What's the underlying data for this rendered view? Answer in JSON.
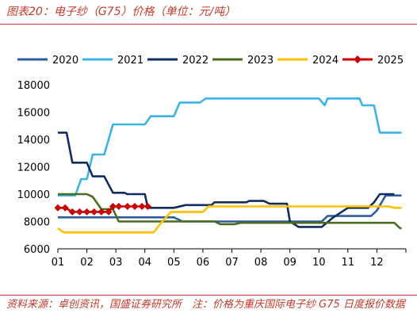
{
  "title": "图表20：电子纱（G75）价格（单位：元/吨）",
  "note": "资料来源：卓创资讯，国盛证券研究所　注：价格为重庆国际电子纱 G75 日度报价数据",
  "chart_data": {
    "type": "line",
    "title": "图表20：电子纱（G75）价格（单位：元/吨）",
    "xlabel": "",
    "ylabel": "",
    "x_ticks": [
      "01",
      "02",
      "03",
      "04",
      "05",
      "06",
      "07",
      "08",
      "09",
      "10",
      "11",
      "12"
    ],
    "xlim": [
      1,
      13
    ],
    "ylim": [
      6000,
      18000
    ],
    "y_ticks": [
      6000,
      8000,
      10000,
      12000,
      14000,
      16000,
      18000
    ],
    "grid": false,
    "legend_position": "top",
    "series": [
      {
        "name": "2020",
        "color": "#2e5d9e",
        "marker": "none",
        "points": [
          [
            1,
            8300
          ],
          [
            4.2,
            8300
          ],
          [
            5,
            8300
          ],
          [
            5.3,
            8000
          ],
          [
            10.1,
            8000
          ],
          [
            10.3,
            8400
          ],
          [
            11.8,
            8400
          ],
          [
            12,
            8800
          ],
          [
            12.3,
            9900
          ],
          [
            12.85,
            9900
          ]
        ]
      },
      {
        "name": "2021",
        "color": "#3ab3e6",
        "marker": "none",
        "points": [
          [
            1,
            9900
          ],
          [
            1.6,
            9900
          ],
          [
            1.8,
            11100
          ],
          [
            2.0,
            11100
          ],
          [
            2.2,
            12900
          ],
          [
            2.6,
            12900
          ],
          [
            2.9,
            15100
          ],
          [
            4.0,
            15100
          ],
          [
            4.2,
            15700
          ],
          [
            5.0,
            15700
          ],
          [
            5.2,
            16700
          ],
          [
            5.9,
            16700
          ],
          [
            6.1,
            17000
          ],
          [
            10.0,
            17000
          ],
          [
            10.2,
            16500
          ],
          [
            10.3,
            17000
          ],
          [
            11.4,
            17000
          ],
          [
            11.5,
            16500
          ],
          [
            11.9,
            16500
          ],
          [
            12.1,
            14500
          ],
          [
            12.85,
            14500
          ]
        ]
      },
      {
        "name": "2022",
        "color": "#0f2d5e",
        "marker": "none",
        "points": [
          [
            1,
            14500
          ],
          [
            1.3,
            14500
          ],
          [
            1.5,
            12300
          ],
          [
            2.0,
            12300
          ],
          [
            2.2,
            11300
          ],
          [
            2.6,
            11300
          ],
          [
            2.9,
            10100
          ],
          [
            3.3,
            10100
          ],
          [
            3.4,
            10000
          ],
          [
            4.0,
            10000
          ],
          [
            4.1,
            9000
          ],
          [
            5.0,
            9000
          ],
          [
            5.4,
            9200
          ],
          [
            6.3,
            9200
          ],
          [
            6.4,
            9400
          ],
          [
            7.5,
            9400
          ],
          [
            7.6,
            9500
          ],
          [
            8.1,
            9500
          ],
          [
            8.3,
            9300
          ],
          [
            8.9,
            9300
          ],
          [
            9.0,
            8000
          ],
          [
            9.3,
            7600
          ],
          [
            10.1,
            7600
          ],
          [
            10.5,
            8300
          ],
          [
            11.0,
            9000
          ],
          [
            11.7,
            9000
          ],
          [
            11.9,
            9400
          ],
          [
            12.1,
            10000
          ],
          [
            12.6,
            10000
          ]
        ]
      },
      {
        "name": "2023",
        "color": "#4a6b1e",
        "marker": "none",
        "points": [
          [
            1,
            10000
          ],
          [
            2.0,
            10000
          ],
          [
            2.2,
            9800
          ],
          [
            2.5,
            8900
          ],
          [
            2.9,
            8900
          ],
          [
            3.1,
            8000
          ],
          [
            6.4,
            8000
          ],
          [
            6.6,
            7800
          ],
          [
            7.1,
            7800
          ],
          [
            7.3,
            7900
          ],
          [
            12.6,
            7900
          ],
          [
            12.8,
            7500
          ],
          [
            12.85,
            7500
          ]
        ]
      },
      {
        "name": "2024",
        "color": "#ffc000",
        "marker": "none",
        "points": [
          [
            1,
            7500
          ],
          [
            1.2,
            7200
          ],
          [
            4.3,
            7200
          ],
          [
            4.6,
            8000
          ],
          [
            4.9,
            8700
          ],
          [
            6.0,
            8700
          ],
          [
            6.2,
            9100
          ],
          [
            12.4,
            9100
          ],
          [
            12.6,
            9000
          ],
          [
            12.85,
            9000
          ]
        ]
      },
      {
        "name": "2025",
        "color": "#cc0000",
        "marker": "diamond",
        "points": [
          [
            1.0,
            9000
          ],
          [
            1.25,
            9000
          ],
          [
            1.5,
            8700
          ],
          [
            1.75,
            8700
          ],
          [
            2.0,
            8700
          ],
          [
            2.25,
            8700
          ],
          [
            2.5,
            8700
          ],
          [
            2.75,
            8700
          ],
          [
            2.9,
            9100
          ],
          [
            3.1,
            9100
          ],
          [
            3.4,
            9100
          ],
          [
            3.65,
            9100
          ],
          [
            3.9,
            9100
          ],
          [
            4.1,
            9100
          ]
        ]
      }
    ]
  }
}
